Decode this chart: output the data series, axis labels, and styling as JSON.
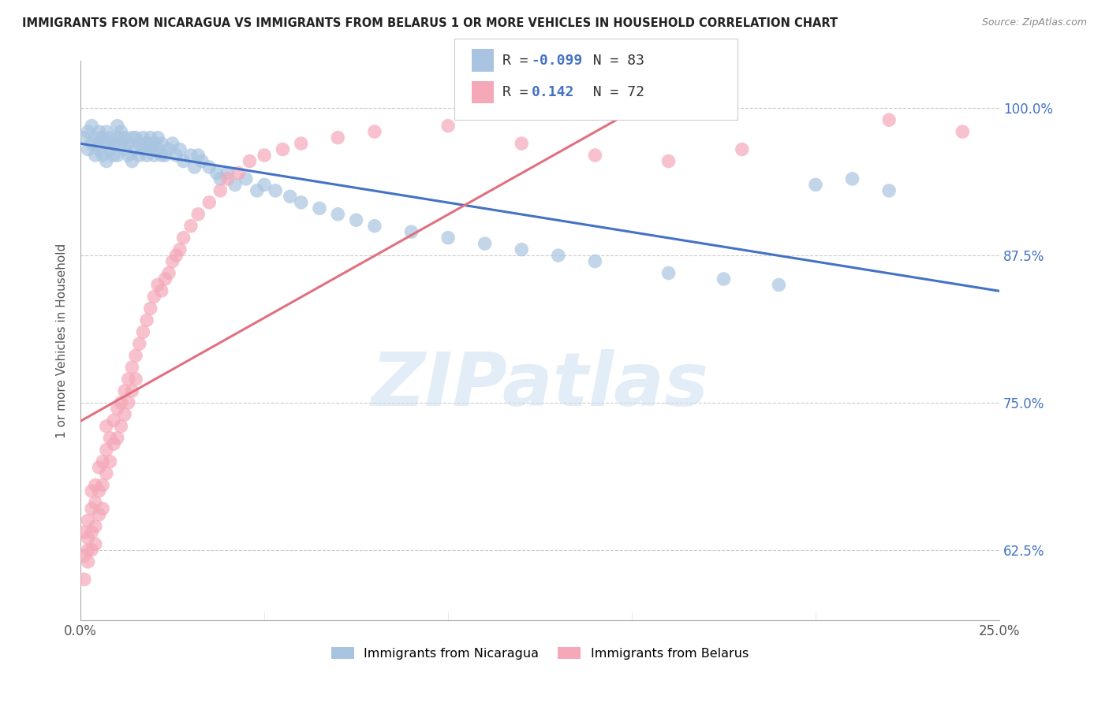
{
  "title": "IMMIGRANTS FROM NICARAGUA VS IMMIGRANTS FROM BELARUS 1 OR MORE VEHICLES IN HOUSEHOLD CORRELATION CHART",
  "source": "Source: ZipAtlas.com",
  "ylabel": "1 or more Vehicles in Household",
  "ytick_labels": [
    "62.5%",
    "75.0%",
    "87.5%",
    "100.0%"
  ],
  "ytick_values": [
    0.625,
    0.75,
    0.875,
    1.0
  ],
  "xlim": [
    0.0,
    0.25
  ],
  "ylim": [
    0.565,
    1.04
  ],
  "legend_nicaragua": "Immigrants from Nicaragua",
  "legend_belarus": "Immigrants from Belarus",
  "R_nicaragua": -0.099,
  "N_nicaragua": 83,
  "R_belarus": 0.142,
  "N_belarus": 72,
  "color_nicaragua": "#a8c4e0",
  "color_belarus": "#f4a8b8",
  "trendline_nicaragua": "#4472c4",
  "trendline_belarus": "#e07080",
  "watermark": "ZIPatlas",
  "nicaragua_x": [
    0.001,
    0.002,
    0.002,
    0.003,
    0.003,
    0.004,
    0.004,
    0.005,
    0.005,
    0.005,
    0.006,
    0.006,
    0.007,
    0.007,
    0.007,
    0.008,
    0.008,
    0.009,
    0.009,
    0.01,
    0.01,
    0.01,
    0.011,
    0.011,
    0.012,
    0.012,
    0.013,
    0.013,
    0.014,
    0.014,
    0.015,
    0.015,
    0.016,
    0.016,
    0.017,
    0.017,
    0.018,
    0.018,
    0.019,
    0.019,
    0.02,
    0.02,
    0.021,
    0.021,
    0.022,
    0.022,
    0.023,
    0.024,
    0.025,
    0.026,
    0.027,
    0.028,
    0.03,
    0.031,
    0.032,
    0.033,
    0.035,
    0.037,
    0.038,
    0.04,
    0.042,
    0.045,
    0.048,
    0.05,
    0.053,
    0.057,
    0.06,
    0.065,
    0.07,
    0.075,
    0.08,
    0.09,
    0.1,
    0.11,
    0.12,
    0.13,
    0.14,
    0.16,
    0.175,
    0.19,
    0.2,
    0.21,
    0.22
  ],
  "nicaragua_y": [
    0.975,
    0.98,
    0.965,
    0.97,
    0.985,
    0.96,
    0.975,
    0.97,
    0.98,
    0.965,
    0.975,
    0.96,
    0.97,
    0.98,
    0.955,
    0.965,
    0.975,
    0.96,
    0.97,
    0.975,
    0.985,
    0.96,
    0.97,
    0.98,
    0.965,
    0.975,
    0.96,
    0.97,
    0.975,
    0.955,
    0.965,
    0.975,
    0.96,
    0.97,
    0.965,
    0.975,
    0.96,
    0.97,
    0.965,
    0.975,
    0.96,
    0.97,
    0.965,
    0.975,
    0.96,
    0.97,
    0.96,
    0.965,
    0.97,
    0.96,
    0.965,
    0.955,
    0.96,
    0.95,
    0.96,
    0.955,
    0.95,
    0.945,
    0.94,
    0.945,
    0.935,
    0.94,
    0.93,
    0.935,
    0.93,
    0.925,
    0.92,
    0.915,
    0.91,
    0.905,
    0.9,
    0.895,
    0.89,
    0.885,
    0.88,
    0.875,
    0.87,
    0.86,
    0.855,
    0.85,
    0.935,
    0.94,
    0.93
  ],
  "belarus_x": [
    0.001,
    0.001,
    0.001,
    0.002,
    0.002,
    0.002,
    0.002,
    0.003,
    0.003,
    0.003,
    0.003,
    0.004,
    0.004,
    0.004,
    0.004,
    0.005,
    0.005,
    0.005,
    0.006,
    0.006,
    0.006,
    0.007,
    0.007,
    0.007,
    0.008,
    0.008,
    0.009,
    0.009,
    0.01,
    0.01,
    0.011,
    0.011,
    0.012,
    0.012,
    0.013,
    0.013,
    0.014,
    0.014,
    0.015,
    0.015,
    0.016,
    0.017,
    0.018,
    0.019,
    0.02,
    0.021,
    0.022,
    0.023,
    0.024,
    0.025,
    0.026,
    0.027,
    0.028,
    0.03,
    0.032,
    0.035,
    0.038,
    0.04,
    0.043,
    0.046,
    0.05,
    0.055,
    0.06,
    0.07,
    0.08,
    0.1,
    0.12,
    0.14,
    0.16,
    0.18,
    0.22,
    0.24
  ],
  "belarus_y": [
    0.62,
    0.64,
    0.6,
    0.635,
    0.615,
    0.65,
    0.625,
    0.64,
    0.66,
    0.625,
    0.675,
    0.645,
    0.665,
    0.68,
    0.63,
    0.655,
    0.675,
    0.695,
    0.66,
    0.68,
    0.7,
    0.69,
    0.71,
    0.73,
    0.7,
    0.72,
    0.715,
    0.735,
    0.72,
    0.745,
    0.73,
    0.75,
    0.74,
    0.76,
    0.75,
    0.77,
    0.76,
    0.78,
    0.77,
    0.79,
    0.8,
    0.81,
    0.82,
    0.83,
    0.84,
    0.85,
    0.845,
    0.855,
    0.86,
    0.87,
    0.875,
    0.88,
    0.89,
    0.9,
    0.91,
    0.92,
    0.93,
    0.94,
    0.945,
    0.955,
    0.96,
    0.965,
    0.97,
    0.975,
    0.98,
    0.985,
    0.97,
    0.96,
    0.955,
    0.965,
    0.99,
    0.98
  ]
}
